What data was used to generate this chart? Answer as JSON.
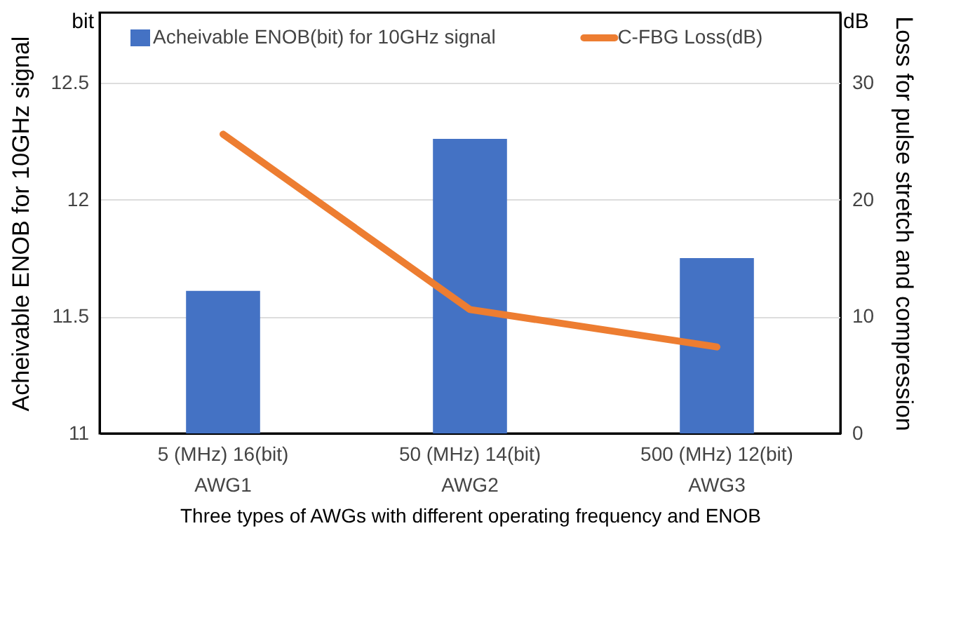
{
  "chart_data": {
    "type": "bar",
    "categories": [
      "5 (MHz) 16(bit)\nAWG1",
      "50 (MHz) 14(bit)\nAWG2",
      "500 (MHz) 12(bit)\nAWG3"
    ],
    "series": [
      {
        "name": "Acheivable ENOB(bit) for 10GHz signal",
        "color": "#4472c4",
        "type": "bar",
        "values": [
          11.61,
          12.26,
          11.75
        ]
      },
      {
        "name": "C-FBG Loss(dB)",
        "color": "#ed7d31",
        "type": "line",
        "axis": "y2",
        "values": [
          25.6,
          10.6,
          7.4
        ]
      }
    ],
    "xlabel": "Three types of AWGs with different operating frequency and ENOB",
    "ylabel": "Acheivable ENOB for 10GHz signal",
    "y2label": "Loss for pulse stretch and compression",
    "ylim": [
      11,
      12.8
    ],
    "yticks": [
      {
        "value": 11,
        "label": "11"
      },
      11.5,
      {
        "value": 12,
        "label": "12"
      },
      12.5
    ],
    "y2lim": [
      0,
      36
    ],
    "y2ticks": [
      0,
      10,
      20,
      30
    ],
    "annotations": [
      "bit",
      "dB"
    ],
    "grid": "y",
    "legend": "top"
  }
}
